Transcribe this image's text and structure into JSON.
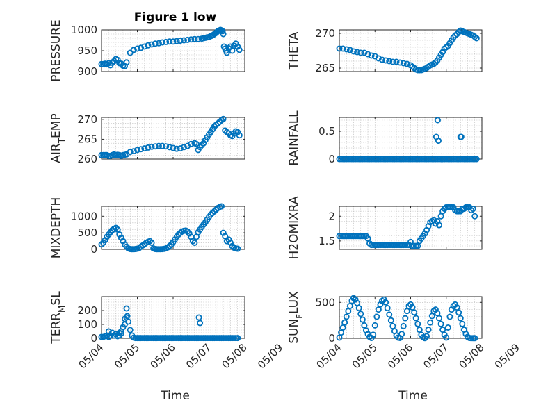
{
  "figure": {
    "title": "Figure 1 low"
  },
  "colors": {
    "marker": "#0072BD",
    "axis": "#262626",
    "grid": "#b5b5b5"
  },
  "chart_data": [
    {
      "type": "scatter",
      "id": "pressure",
      "ylabel": {
        "parts": [
          {
            "t": "PRESSURE"
          }
        ]
      },
      "yticks": [
        900,
        950,
        1000
      ],
      "ylim": [
        900,
        1000
      ],
      "xlim": [
        0,
        4
      ],
      "grid": true,
      "x": [
        0.0,
        0.05,
        0.1,
        0.15,
        0.2,
        0.25,
        0.3,
        0.35,
        0.4,
        0.45,
        0.5,
        0.55,
        0.6,
        0.65,
        0.7,
        0.8,
        0.9,
        1.0,
        1.1,
        1.2,
        1.3,
        1.4,
        1.5,
        1.6,
        1.7,
        1.8,
        1.9,
        2.0,
        2.1,
        2.2,
        2.3,
        2.4,
        2.5,
        2.6,
        2.7,
        2.8,
        2.85,
        2.9,
        2.95,
        3.0,
        3.05,
        3.08,
        3.1,
        3.12,
        3.15,
        3.18,
        3.2,
        3.22,
        3.25,
        3.28,
        3.3,
        3.32,
        3.35,
        3.38,
        3.4,
        3.42,
        3.45,
        3.48,
        3.5,
        3.55,
        3.6,
        3.65,
        3.7,
        3.75,
        3.8,
        3.85
      ],
      "y": [
        918,
        918,
        919,
        918,
        920,
        915,
        921,
        925,
        930,
        928,
        920,
        919,
        914,
        913,
        922,
        945,
        952,
        955,
        957,
        960,
        963,
        965,
        967,
        968,
        970,
        971,
        972,
        972,
        973,
        974,
        975,
        976,
        977,
        978,
        978,
        979,
        980,
        981,
        982,
        983,
        985,
        986,
        987,
        988,
        990,
        992,
        993,
        995,
        997,
        998,
        999,
        1000,
        999,
        997,
        990,
        960,
        955,
        950,
        945,
        956,
        960,
        950,
        962,
        967,
        960,
        952
      ]
    },
    {
      "type": "scatter",
      "id": "theta",
      "ylabel": {
        "parts": [
          {
            "t": "THETA"
          }
        ]
      },
      "yticks": [
        265,
        270
      ],
      "ylim": [
        264.5,
        270.5
      ],
      "xlim": [
        0,
        4
      ],
      "grid": true,
      "x": [
        0.0,
        0.1,
        0.2,
        0.3,
        0.4,
        0.5,
        0.6,
        0.7,
        0.8,
        0.9,
        1.0,
        1.1,
        1.2,
        1.3,
        1.4,
        1.5,
        1.6,
        1.7,
        1.8,
        1.9,
        2.0,
        2.05,
        2.1,
        2.15,
        2.2,
        2.25,
        2.3,
        2.35,
        2.4,
        2.45,
        2.5,
        2.55,
        2.6,
        2.65,
        2.7,
        2.75,
        2.8,
        2.85,
        2.9,
        2.95,
        3.0,
        3.05,
        3.1,
        3.15,
        3.2,
        3.25,
        3.3,
        3.35,
        3.4,
        3.45,
        3.5,
        3.55,
        3.6,
        3.65,
        3.7,
        3.75,
        3.8,
        3.85
      ],
      "y": [
        267.8,
        267.8,
        267.7,
        267.6,
        267.4,
        267.3,
        267.2,
        267.2,
        267.0,
        266.8,
        266.7,
        266.4,
        266.2,
        266.1,
        266.0,
        265.9,
        265.9,
        265.8,
        265.7,
        265.6,
        265.4,
        265.2,
        265.0,
        264.8,
        264.7,
        264.7,
        264.7,
        264.8,
        264.9,
        265.0,
        265.2,
        265.4,
        265.5,
        265.6,
        265.8,
        266.1,
        266.5,
        266.9,
        267.3,
        267.8,
        268.0,
        268.2,
        268.6,
        269.0,
        269.4,
        269.7,
        269.9,
        270.2,
        270.4,
        270.3,
        270.2,
        270.1,
        270.0,
        269.9,
        269.8,
        269.7,
        269.5,
        269.3
      ]
    },
    {
      "type": "scatter",
      "id": "air_temp",
      "ylabel": {
        "parts": [
          {
            "t": "AIR"
          },
          {
            "t": "T",
            "sub": true
          },
          {
            "t": "EMP"
          }
        ]
      },
      "yticks": [
        260,
        265,
        270
      ],
      "ylim": [
        260,
        270.5
      ],
      "xlim": [
        0,
        4
      ],
      "grid": true,
      "x": [
        0.0,
        0.05,
        0.1,
        0.15,
        0.2,
        0.25,
        0.3,
        0.35,
        0.4,
        0.45,
        0.5,
        0.55,
        0.6,
        0.65,
        0.7,
        0.8,
        0.9,
        1.0,
        1.1,
        1.2,
        1.3,
        1.4,
        1.5,
        1.6,
        1.7,
        1.8,
        1.9,
        2.0,
        2.1,
        2.2,
        2.3,
        2.4,
        2.5,
        2.6,
        2.65,
        2.7,
        2.75,
        2.8,
        2.85,
        2.9,
        2.95,
        3.0,
        3.05,
        3.1,
        3.15,
        3.2,
        3.25,
        3.3,
        3.35,
        3.4,
        3.45,
        3.5,
        3.55,
        3.6,
        3.65,
        3.7,
        3.75,
        3.8,
        3.85
      ],
      "y": [
        261.0,
        261.0,
        261.0,
        261.0,
        260.8,
        260.8,
        261.0,
        261.2,
        261.0,
        261.1,
        261.0,
        260.8,
        261.0,
        261.1,
        261.2,
        261.8,
        262.0,
        262.3,
        262.5,
        262.7,
        262.9,
        263.1,
        263.2,
        263.3,
        263.3,
        263.2,
        263.0,
        262.8,
        262.6,
        262.7,
        263.0,
        263.3,
        263.8,
        264.0,
        263.8,
        262.3,
        263.0,
        263.5,
        264.0,
        264.8,
        265.5,
        266.2,
        266.8,
        267.5,
        268.2,
        268.6,
        269.0,
        269.4,
        269.8,
        270.1,
        267.2,
        266.8,
        266.5,
        266.0,
        265.8,
        266.5,
        267.0,
        266.8,
        266.0
      ]
    },
    {
      "type": "scatter",
      "id": "rainfall",
      "ylabel": {
        "parts": [
          {
            "t": "RAINFALL"
          }
        ]
      },
      "yticks": [
        0,
        0.5
      ],
      "ylim": [
        0,
        0.75
      ],
      "xlim": [
        0,
        4
      ],
      "grid": true,
      "x": [
        0.0,
        0.05,
        0.1,
        0.15,
        0.2,
        0.25,
        0.3,
        0.35,
        0.4,
        0.45,
        0.5,
        0.55,
        0.6,
        0.65,
        0.7,
        0.75,
        0.8,
        0.85,
        0.9,
        0.95,
        1.0,
        1.05,
        1.1,
        1.15,
        1.2,
        1.25,
        1.3,
        1.35,
        1.4,
        1.45,
        1.5,
        1.55,
        1.6,
        1.65,
        1.7,
        1.75,
        1.8,
        1.85,
        1.9,
        1.95,
        2.0,
        2.05,
        2.1,
        2.15,
        2.2,
        2.25,
        2.3,
        2.35,
        2.4,
        2.45,
        2.5,
        2.55,
        2.6,
        2.65,
        2.7,
        2.75,
        2.8,
        2.85,
        2.9,
        2.95,
        3.0,
        3.05,
        3.1,
        3.15,
        3.2,
        3.25,
        3.3,
        3.35,
        3.4,
        3.45,
        3.5,
        3.55,
        3.6,
        3.65,
        3.7,
        3.75,
        3.8,
        3.85,
        2.72,
        2.76,
        2.78,
        3.4,
        3.42
      ],
      "y": [
        0,
        0,
        0,
        0,
        0,
        0,
        0,
        0,
        0,
        0,
        0,
        0,
        0,
        0,
        0,
        0,
        0,
        0,
        0,
        0,
        0,
        0,
        0,
        0,
        0,
        0,
        0,
        0,
        0,
        0,
        0,
        0,
        0,
        0,
        0,
        0,
        0,
        0,
        0,
        0,
        0,
        0,
        0,
        0,
        0,
        0,
        0,
        0,
        0,
        0,
        0,
        0,
        0,
        0,
        0,
        0,
        0,
        0,
        0,
        0,
        0,
        0,
        0,
        0,
        0,
        0,
        0,
        0,
        0,
        0,
        0,
        0,
        0,
        0,
        0,
        0,
        0,
        0,
        0.4,
        0.7,
        0.33,
        0.4,
        0.4
      ]
    },
    {
      "type": "scatter",
      "id": "mixdepth",
      "ylabel": {
        "parts": [
          {
            "t": "MIXDEPTH"
          }
        ]
      },
      "yticks": [
        0,
        500,
        1000
      ],
      "ylim": [
        0,
        1300
      ],
      "xlim": [
        0,
        4
      ],
      "grid": true,
      "x": [
        0.0,
        0.05,
        0.1,
        0.15,
        0.2,
        0.25,
        0.3,
        0.35,
        0.4,
        0.45,
        0.5,
        0.55,
        0.6,
        0.65,
        0.7,
        0.75,
        0.8,
        0.85,
        0.9,
        0.95,
        1.0,
        1.05,
        1.1,
        1.15,
        1.2,
        1.25,
        1.3,
        1.35,
        1.4,
        1.45,
        1.5,
        1.55,
        1.6,
        1.65,
        1.7,
        1.75,
        1.8,
        1.85,
        1.9,
        1.95,
        2.0,
        2.05,
        2.1,
        2.15,
        2.2,
        2.25,
        2.3,
        2.35,
        2.4,
        2.45,
        2.5,
        2.55,
        2.6,
        2.65,
        2.7,
        2.75,
        2.8,
        2.85,
        2.9,
        2.95,
        3.0,
        3.05,
        3.1,
        3.15,
        3.2,
        3.25,
        3.3,
        3.35,
        3.4,
        3.45,
        3.5,
        3.55,
        3.6,
        3.65,
        3.7,
        3.75,
        3.8
      ],
      "y": [
        150,
        200,
        280,
        380,
        450,
        520,
        580,
        620,
        650,
        600,
        450,
        350,
        250,
        150,
        80,
        30,
        10,
        5,
        5,
        10,
        20,
        40,
        80,
        120,
        160,
        200,
        230,
        250,
        200,
        30,
        10,
        5,
        5,
        5,
        8,
        15,
        30,
        60,
        100,
        150,
        220,
        300,
        380,
        450,
        500,
        540,
        560,
        570,
        540,
        480,
        380,
        250,
        200,
        380,
        520,
        600,
        680,
        750,
        820,
        900,
        980,
        1050,
        1100,
        1150,
        1200,
        1250,
        1280,
        1300,
        500,
        400,
        250,
        300,
        200,
        100,
        50,
        30,
        20
      ]
    },
    {
      "type": "scatter",
      "id": "h2omixra",
      "ylabel": {
        "parts": [
          {
            "t": "H2OMIXRA"
          }
        ]
      },
      "yticks": [
        1.5,
        2
      ],
      "ylim": [
        1.33,
        2.2
      ],
      "xlim": [
        0,
        4
      ],
      "grid": true,
      "x": [
        0.0,
        0.05,
        0.1,
        0.15,
        0.2,
        0.25,
        0.3,
        0.35,
        0.4,
        0.45,
        0.5,
        0.55,
        0.6,
        0.65,
        0.7,
        0.75,
        0.8,
        0.85,
        0.9,
        0.95,
        1.0,
        1.05,
        1.1,
        1.15,
        1.2,
        1.25,
        1.3,
        1.35,
        1.4,
        1.45,
        1.5,
        1.55,
        1.6,
        1.65,
        1.7,
        1.75,
        1.8,
        1.85,
        1.9,
        1.95,
        2.0,
        2.05,
        2.1,
        2.15,
        2.2,
        2.25,
        2.3,
        2.35,
        2.4,
        2.45,
        2.5,
        2.55,
        2.6,
        2.65,
        2.7,
        2.75,
        2.8,
        2.85,
        2.9,
        2.95,
        3.0,
        3.05,
        3.1,
        3.15,
        3.2,
        3.25,
        3.3,
        3.35,
        3.4,
        3.45,
        3.5,
        3.55,
        3.6,
        3.65,
        3.7,
        3.75,
        3.8
      ],
      "y": [
        1.6,
        1.6,
        1.6,
        1.6,
        1.6,
        1.6,
        1.6,
        1.6,
        1.6,
        1.6,
        1.6,
        1.6,
        1.6,
        1.6,
        1.6,
        1.6,
        1.55,
        1.45,
        1.42,
        1.42,
        1.42,
        1.42,
        1.42,
        1.42,
        1.42,
        1.42,
        1.42,
        1.42,
        1.42,
        1.42,
        1.42,
        1.42,
        1.42,
        1.42,
        1.42,
        1.42,
        1.42,
        1.42,
        1.42,
        1.42,
        1.48,
        1.4,
        1.4,
        1.4,
        1.4,
        1.5,
        1.55,
        1.6,
        1.65,
        1.72,
        1.8,
        1.88,
        1.9,
        1.92,
        1.85,
        1.9,
        1.82,
        2.0,
        2.1,
        2.15,
        2.18,
        2.18,
        2.18,
        2.18,
        2.18,
        2.12,
        2.1,
        2.1,
        2.1,
        2.15,
        2.15,
        2.18,
        2.18,
        2.18,
        2.12,
        2.15,
        2.0
      ]
    },
    {
      "type": "scatter",
      "id": "terr_msl",
      "ylabel": {
        "parts": [
          {
            "t": "TERR"
          },
          {
            "t": "M",
            "sub": true
          },
          {
            "t": "SL"
          }
        ]
      },
      "yticks": [
        0,
        100,
        200
      ],
      "ylim": [
        0,
        300
      ],
      "xlim": [
        0,
        4
      ],
      "grid": true,
      "x": [
        0.0,
        0.05,
        0.1,
        0.15,
        0.2,
        0.25,
        0.3,
        0.35,
        0.4,
        0.45,
        0.5,
        0.55,
        0.6,
        0.65,
        0.7,
        0.75,
        0.8,
        0.85,
        0.9,
        0.95,
        1.0,
        1.05,
        1.1,
        1.15,
        1.2,
        1.25,
        1.3,
        1.35,
        1.4,
        1.45,
        1.5,
        1.55,
        1.6,
        1.65,
        1.7,
        1.75,
        1.8,
        1.85,
        1.9,
        1.95,
        2.0,
        2.05,
        2.1,
        2.15,
        2.2,
        2.25,
        2.3,
        2.35,
        2.4,
        2.45,
        2.5,
        2.55,
        2.6,
        2.65,
        2.7,
        2.75,
        2.8,
        2.85,
        2.9,
        2.95,
        3.0,
        3.05,
        3.1,
        3.15,
        3.2,
        3.25,
        3.3,
        3.35,
        3.4,
        3.45,
        3.5,
        3.55,
        3.6,
        3.65,
        3.7,
        3.75,
        3.8,
        0.2,
        0.4,
        0.5,
        0.55,
        0.65,
        0.7,
        0.72,
        2.72,
        2.75
      ],
      "y": [
        10,
        10,
        15,
        20,
        10,
        20,
        40,
        20,
        30,
        15,
        20,
        50,
        80,
        100,
        150,
        120,
        60,
        20,
        5,
        2,
        2,
        2,
        2,
        2,
        2,
        2,
        2,
        2,
        2,
        2,
        2,
        2,
        2,
        2,
        2,
        2,
        2,
        2,
        2,
        2,
        2,
        2,
        2,
        2,
        2,
        2,
        2,
        2,
        2,
        2,
        2,
        2,
        2,
        2,
        2,
        2,
        2,
        2,
        2,
        2,
        2,
        2,
        2,
        2,
        2,
        2,
        2,
        2,
        2,
        2,
        2,
        2,
        2,
        2,
        2,
        2,
        2,
        50,
        30,
        40,
        35,
        140,
        215,
        160,
        150,
        110
      ]
    },
    {
      "type": "scatter",
      "id": "sun_flux",
      "ylabel": {
        "parts": [
          {
            "t": "SUN"
          },
          {
            "t": "F",
            "sub": true
          },
          {
            "t": "LUX"
          }
        ]
      },
      "yticks": [
        0,
        500
      ],
      "ylim": [
        0,
        580
      ],
      "xlim": [
        0,
        4
      ],
      "grid": true,
      "x": [
        0.0,
        0.05,
        0.1,
        0.15,
        0.2,
        0.25,
        0.3,
        0.35,
        0.4,
        0.45,
        0.5,
        0.55,
        0.6,
        0.65,
        0.7,
        0.75,
        0.8,
        0.85,
        0.9,
        0.95,
        1.0,
        1.05,
        1.1,
        1.15,
        1.2,
        1.25,
        1.3,
        1.35,
        1.4,
        1.45,
        1.5,
        1.55,
        1.6,
        1.65,
        1.7,
        1.75,
        1.8,
        1.85,
        1.9,
        1.95,
        2.0,
        2.05,
        2.1,
        2.15,
        2.2,
        2.25,
        2.3,
        2.35,
        2.4,
        2.45,
        2.5,
        2.55,
        2.6,
        2.65,
        2.7,
        2.75,
        2.8,
        2.85,
        2.9,
        2.95,
        3.0,
        3.05,
        3.1,
        3.15,
        3.2,
        3.25,
        3.3,
        3.35,
        3.4,
        3.45,
        3.5,
        3.55,
        3.6,
        3.65,
        3.7,
        3.75,
        3.8
      ],
      "y": [
        10,
        80,
        150,
        220,
        300,
        380,
        450,
        520,
        560,
        540,
        490,
        420,
        340,
        260,
        180,
        110,
        60,
        20,
        5,
        50,
        180,
        300,
        400,
        470,
        520,
        540,
        500,
        420,
        330,
        250,
        170,
        100,
        40,
        10,
        5,
        60,
        170,
        280,
        380,
        450,
        470,
        430,
        360,
        280,
        200,
        120,
        50,
        15,
        2,
        30,
        120,
        220,
        310,
        380,
        400,
        350,
        280,
        200,
        120,
        50,
        10,
        150,
        300,
        400,
        450,
        470,
        430,
        360,
        280,
        200,
        120,
        60,
        20,
        5,
        2,
        2,
        2
      ]
    }
  ],
  "x_axis": {
    "ticklabels": [
      "05/04",
      "05/05",
      "05/06",
      "05/07",
      "05/08",
      "05/09"
    ],
    "label": "Time"
  }
}
